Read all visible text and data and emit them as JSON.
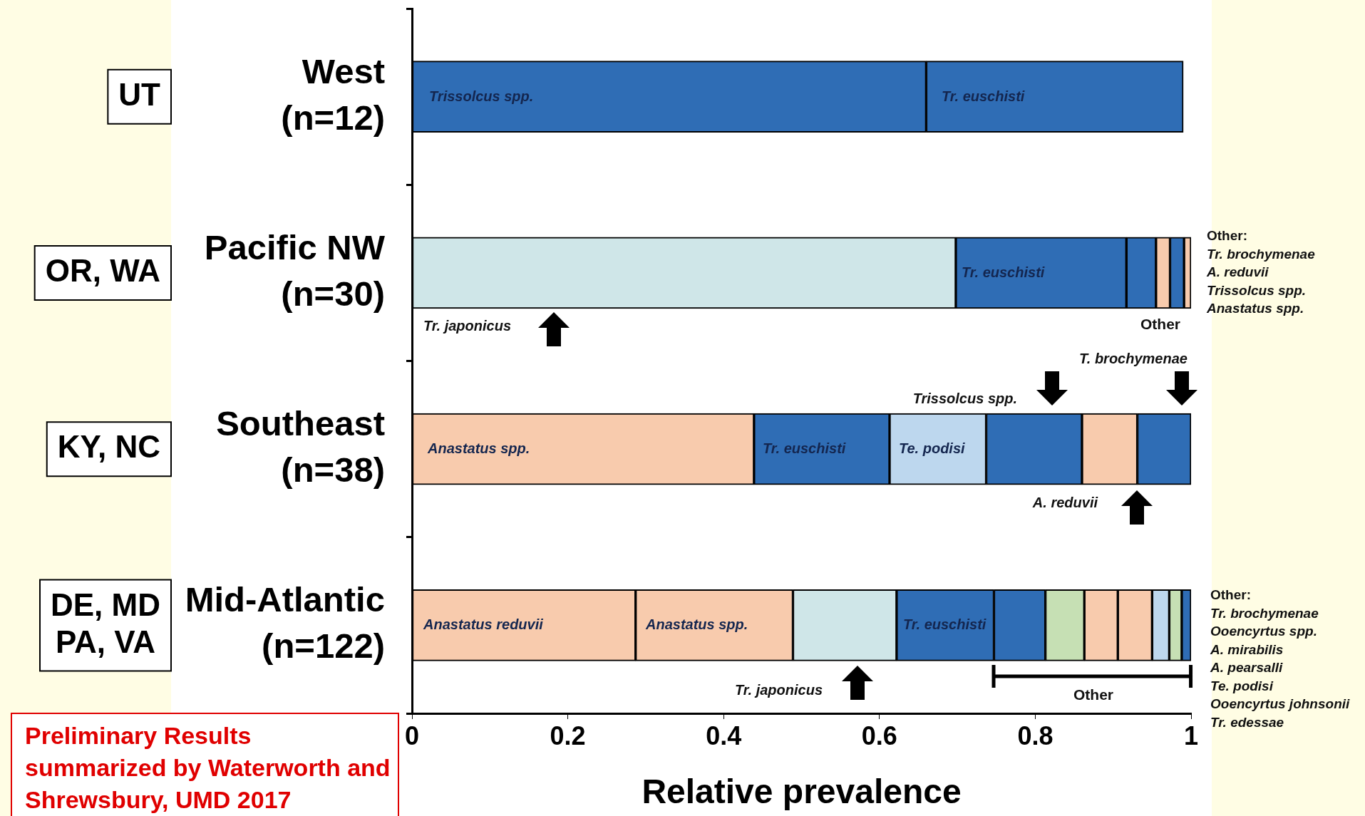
{
  "chart_data": {
    "type": "bar",
    "orientation": "horizontal",
    "stacked": true,
    "xlabel": "Relative prevalence",
    "categories": [
      "West\n(n=12)",
      "Pacific NW\n(n=30)",
      "Southeast\n(n=38)",
      "Mid-Atlantic\n(n=122)"
    ],
    "xlim": [
      0,
      1
    ],
    "xticks": [
      0,
      0.2,
      0.4,
      0.6,
      0.8,
      1
    ],
    "legend": false,
    "series": [
      {
        "values": [
          0.66,
          0.698,
          0.439,
          0.287
        ],
        "colors": [
          "#2f6db5",
          "#cfe6e8",
          "#f8cbad",
          "#f8cbad"
        ]
      },
      {
        "values": [
          0.33,
          0.219,
          0.174,
          0.202
        ],
        "colors": [
          "#2f6db5",
          "#2f6db5",
          "#2f6db5",
          "#f8cbad"
        ]
      },
      {
        "values": [
          null,
          0.038,
          0.124,
          0.133
        ],
        "colors": [
          null,
          "#2f6db5",
          "#bdd7ee",
          "#cfe6e8"
        ]
      },
      {
        "values": [
          null,
          0.018,
          0.123,
          0.125
        ],
        "colors": [
          null,
          "#f8cbad",
          "#2f6db5",
          "#2f6db5"
        ]
      },
      {
        "values": [
          null,
          0.018,
          0.071,
          0.066
        ],
        "colors": [
          null,
          "#2f6db5",
          "#f8cbad",
          "#2f6db5"
        ]
      },
      {
        "values": [
          null,
          0.009,
          0.069,
          0.05
        ],
        "colors": [
          null,
          "#f8cbad",
          "#2f6db5",
          "#c6e0b4"
        ]
      },
      {
        "values": [
          null,
          null,
          null,
          0.043
        ],
        "colors": [
          null,
          null,
          null,
          "#f8cbad"
        ]
      },
      {
        "values": [
          null,
          null,
          null,
          0.044
        ],
        "colors": [
          null,
          null,
          null,
          "#f8cbad"
        ]
      },
      {
        "values": [
          null,
          null,
          null,
          0.022
        ],
        "colors": [
          null,
          null,
          null,
          "#bdd7ee"
        ]
      },
      {
        "values": [
          null,
          null,
          null,
          0.016
        ],
        "colors": [
          null,
          null,
          null,
          "#c6e0b4"
        ]
      },
      {
        "values": [
          null,
          null,
          null,
          0.012
        ],
        "colors": [
          null,
          null,
          null,
          "#2f6db5"
        ]
      }
    ],
    "annotations": [
      "Trissolcus spp.",
      "Tr. euschisti",
      "Tr. euschisti",
      "Tr. japonicus",
      "Other",
      "Other:\nTr. brochymenae\nA. reduvii\nTrissolcus spp.\nAnastatus spp.",
      "Anastatus spp.",
      "Tr. euschisti",
      "Te. podisi",
      "Trissolcus spp.",
      "T. brochymenae",
      "A. reduvii",
      "Anastatus reduvii",
      "Anastatus spp.",
      "Tr. euschisti",
      "Tr. japonicus",
      "Other",
      "Other:\nTr. brochymenae\nOoencyrtus spp.\nA. mirabilis\nA. pearsalli\nTe. podisi\nOoencyrtus johnsonii\nTr. edessae",
      "UT",
      "OR, WA",
      "KY, NC",
      "DE, MD\nPA, VA",
      "Preliminary Results summarized by Waterworth and Shrewsbury, UMD 2017"
    ]
  }
}
